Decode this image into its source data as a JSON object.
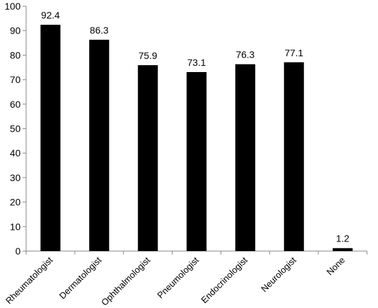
{
  "chart_data": {
    "type": "bar",
    "categories": [
      "Rheumatologist",
      "Dermatologist",
      "Ophthalmologist",
      "Pneumologist",
      "Endocrinologist",
      "Neurologist",
      "None"
    ],
    "values": [
      92.4,
      86.3,
      75.9,
      73.1,
      76.3,
      77.1,
      1.2
    ],
    "data_labels": [
      "92.4",
      "86.3",
      "75.9",
      "73.1",
      "76.3",
      "77.1",
      "1.2"
    ],
    "title": "",
    "xlabel": "",
    "ylabel": "",
    "ylim": [
      0,
      100
    ],
    "yticks": [
      0,
      10,
      20,
      30,
      40,
      50,
      60,
      70,
      80,
      90,
      100
    ],
    "grid": false,
    "bar_color": "#000000"
  }
}
